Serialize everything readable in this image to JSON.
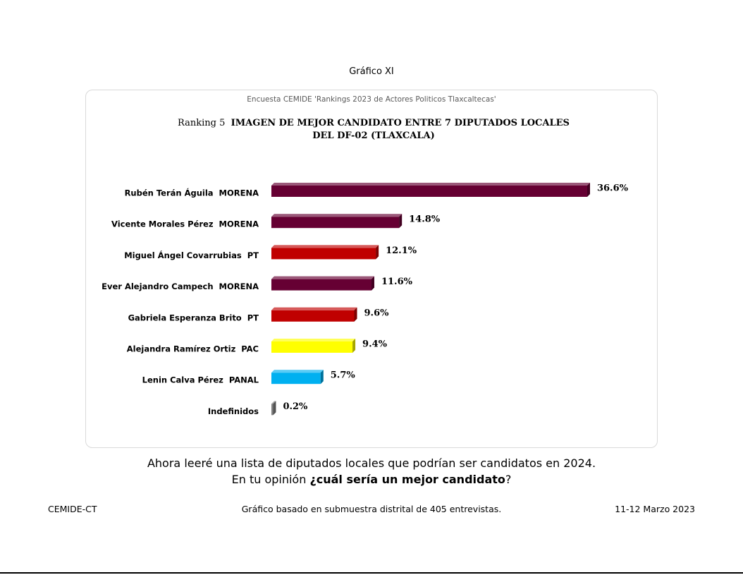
{
  "header": "Gráfico XI",
  "chart_data": {
    "type": "bar",
    "orientation": "horizontal",
    "subtitle": "Encuesta CEMIDE 'Rankings 2023 de Actores Politicos Tlaxcaltecas'",
    "title_prefix": "Ranking 5",
    "title": "IMAGEN DE MEJOR CANDIDATO ENTRE 7 DIPUTADOS LOCALES DEL DF-02 (TLAXCALA)",
    "categories": [
      "Rubén Terán Águila  MORENA",
      "Vicente Morales Pérez  MORENA",
      "Miguel Ángel Covarrubias  PT",
      "Ever Alejandro Campech  MORENA",
      "Gabriela Esperanza Brito  PT",
      "Alejandra Ramírez Ortiz  PAC",
      "Lenin Calva Pérez  PANAL",
      "Indefinidos"
    ],
    "values": [
      36.6,
      14.8,
      12.1,
      11.6,
      9.6,
      9.4,
      5.7,
      0.2
    ],
    "value_labels": [
      "36.6%",
      "14.8%",
      "12.1%",
      "11.6%",
      "9.6%",
      "9.4%",
      "5.7%",
      "0.2%"
    ],
    "colors": [
      "#660033",
      "#660033",
      "#c00000",
      "#660033",
      "#c00000",
      "#ffff00",
      "#00b0f0",
      "#808080"
    ]
  },
  "question": {
    "line1": "Ahora leeré una lista de diputados locales que podrían ser candidatos en 2024.",
    "line2": [
      "En tu opinión",
      "¿cuál sería un mejor candidato",
      "?"
    ]
  },
  "footer": {
    "left": "CEMIDE-CT",
    "center": "Gráfico basado en submuestra distrital de 405 entrevistas.",
    "right": "11-12 Marzo 2023"
  }
}
